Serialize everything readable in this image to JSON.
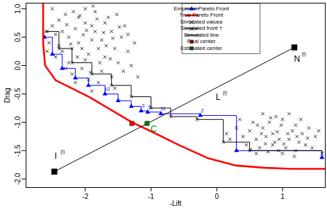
{
  "chart_data": {
    "type": "scatter",
    "xlabel": "-Lift",
    "ylabel": "Drag",
    "xlim": [
      -2.9,
      1.65
    ],
    "ylim": [
      -2.15,
      1.1
    ],
    "xticks": [
      -2,
      -1,
      0,
      1
    ],
    "yticks": [
      {
        "value": -2,
        "label": "-2.0"
      },
      -1.5,
      {
        "value": -1,
        "label": "-1.0"
      },
      -0.5,
      {
        "value": 0,
        "label": "0.0"
      },
      0.5,
      {
        "value": 1,
        "label": "1.0"
      }
    ],
    "grid": false,
    "legend": "top-right",
    "series": [
      {
        "name": "Empirical Pareto Front",
        "type": "line",
        "color": "#0000ff",
        "marker": "triangle",
        "line_style": "step",
        "x": [
          -2.62,
          -2.5,
          -2.35,
          -2.15,
          -1.95,
          -1.7,
          -1.5,
          -1.3,
          -1.15,
          -1.05,
          -0.85,
          -0.25,
          0.3,
          1.6
        ],
        "values": [
          0.5,
          0.2,
          -0.05,
          -0.22,
          -0.35,
          -0.5,
          -0.62,
          -0.72,
          -0.8,
          -0.82,
          -0.85,
          -0.88,
          -1.5,
          -1.62
        ],
        "labels": [
          null,
          null,
          null,
          null,
          null,
          "10",
          null,
          null,
          "3",
          "5",
          "11",
          "2",
          null,
          null
        ]
      },
      {
        "name": "True Pareto Front",
        "type": "line",
        "color": "#ff0000",
        "line_style": "thick",
        "x": [
          -2.64,
          -2.64,
          -2.61,
          -2.45,
          -2.24,
          -1.93,
          -1.61,
          -1.29,
          -0.98,
          -0.56,
          -0.14,
          0.28,
          0.71,
          1.13,
          1.65
        ],
        "values": [
          1.1,
          0.4,
          0.0,
          -0.26,
          -0.38,
          -0.56,
          -0.78,
          -1.0,
          -1.17,
          -1.41,
          -1.63,
          -1.76,
          -1.8,
          -1.82,
          -1.82
        ]
      },
      {
        "name": "Simulated values",
        "type": "scatter",
        "color": "#000000",
        "marker": "x",
        "x": [
          -2.03,
          -1.9,
          -2.2,
          -1.75,
          -2.1,
          -1.95,
          -2.35,
          -1.6,
          -1.85,
          -2.25,
          -2.4,
          -1.7,
          -2.0,
          -1.55,
          -2.15,
          -1.8,
          -2.3,
          -1.65,
          -2.45,
          -1.5,
          -2.05,
          -1.9,
          -2.2,
          -1.45,
          -2.5,
          -1.75,
          -2.1,
          -1.35,
          -2.55,
          -1.95,
          -1.6,
          -2.3,
          -1.4,
          -2.0,
          -1.85,
          -2.25,
          -1.7,
          -2.12,
          -1.52,
          -2.4,
          -1.88,
          -1.3,
          -2.58,
          -1.8,
          -2.05,
          -1.68,
          -2.18,
          -1.42,
          -2.35,
          -1.98,
          -1.58,
          -2.28,
          -1.25,
          -1.92,
          -2.08,
          -1.72,
          -2.45,
          -1.62,
          -1.82,
          -2.22,
          -1.48,
          -2.0,
          -1.78,
          -2.5,
          -1.35,
          -2.15,
          -1.55,
          -2.6,
          -1.2,
          -1.9,
          0.92,
          0.7,
          1.1,
          0.85,
          1.2,
          0.6,
          1.0,
          0.75,
          1.3,
          0.5,
          1.05,
          0.9,
          0.65,
          1.25,
          0.8,
          1.4,
          0.55,
          0.95,
          1.15,
          0.4,
          1.35,
          0.7,
          1.0,
          0.85,
          1.2,
          0.3,
          1.5,
          0.6,
          1.1,
          0.45,
          0.98,
          1.28,
          0.78,
          1.45,
          0.2,
          1.08,
          0.68,
          0.88,
          1.55,
          0.35,
          1.18,
          0.52,
          0.82,
          1.38,
          0.62,
          1.02,
          0.15,
          1.22,
          0.74,
          0.94
        ],
        "values": [
          0.54,
          0.7,
          0.3,
          0.45,
          0.85,
          0.2,
          0.6,
          0.6,
          0.95,
          0.05,
          0.35,
          0.15,
          1.0,
          0.3,
          0.65,
          0.3,
          0.9,
          0.85,
          0.15,
          0.05,
          -0.05,
          0.45,
          -0.15,
          0.5,
          0.7,
          -0.1,
          0.4,
          0.25,
          0.4,
          -0.25,
          -0.2,
          -0.05,
          0.7,
          0.75,
          0.6,
          0.5,
          0.75,
          0.15,
          0.9,
          0.8,
          1.05,
          0.0,
          0.25,
          -0.3,
          0.3,
          0.35,
          0.95,
          -0.1,
          0.25,
          0.62,
          0.48,
          0.72,
          0.4,
          -0.12,
          0.88,
          0.58,
          0.55,
          0.12,
          0.82,
          0.38,
          0.68,
          0.1,
          0.05,
          1.0,
          0.55,
          -0.3,
          -0.4,
          0.6,
          -0.2,
          -0.45,
          -1.17,
          -1.1,
          -1.3,
          -1.4,
          -1.05,
          -1.3,
          -0.95,
          -1.25,
          -1.2,
          -1.15,
          -1.45,
          -0.9,
          -1.45,
          -1.35,
          -1.0,
          -1.1,
          -1.0,
          -1.3,
          -1.15,
          -1.25,
          -1.4,
          -0.85,
          -1.55,
          -1.2,
          -1.5,
          -1.1,
          -1.25,
          -1.55,
          -0.85,
          -1.4,
          -1.05,
          -0.95,
          -1.52,
          -1.45,
          -1.3,
          -1.2,
          -1.2,
          -1.35,
          -1.15,
          -0.95,
          -1.6,
          -1.48,
          -0.92,
          -1.28,
          -1.05,
          -1.38,
          -1.2,
          -1.25,
          -1.38,
          -1.5
        ]
      },
      {
        "name": "Simulated front †",
        "type": "line",
        "color": "#000000",
        "marker": "x",
        "line_style": "step",
        "x": [
          -2.58,
          -2.4,
          -2.2,
          -1.9,
          -1.6,
          -1.3,
          -1.0,
          -0.7,
          -0.3,
          0.1,
          0.5,
          1.6
        ],
        "values": [
          0.6,
          0.3,
          0.05,
          -0.15,
          -0.35,
          -0.55,
          -0.75,
          -0.9,
          -0.95,
          -1.35,
          -1.5,
          -1.55
        ]
      },
      {
        "name": "Simulated line",
        "type": "line",
        "color": "#000000",
        "line_style": "solid",
        "x": [
          -2.47,
          1.18
        ],
        "values": [
          -1.87,
          0.32
        ]
      },
      {
        "name": "Real center",
        "type": "scatter",
        "color": "#ff0000",
        "marker": "square",
        "x": [
          -1.29
        ],
        "values": [
          -1.02
        ]
      },
      {
        "name": "Estimated center",
        "type": "scatter",
        "color": "#008000",
        "marker": "square",
        "x": [
          -1.06
        ],
        "values": [
          -1.02
        ]
      }
    ],
    "points": [
      {
        "x": -2.47,
        "y": -1.87,
        "marker": "square",
        "color": "#000000"
      },
      {
        "x": 1.18,
        "y": 0.32,
        "marker": "square",
        "color": "#000000"
      }
    ],
    "annotations": [
      {
        "text": "I",
        "superscript": "(i)",
        "x": -2.45,
        "y": -1.6,
        "color": "#000000"
      },
      {
        "text": "N",
        "superscript": "(i)",
        "x": 1.22,
        "y": 0.12,
        "color": "#000000"
      },
      {
        "text": "L",
        "superscript": "(i)",
        "x": 0.02,
        "y": -0.56,
        "color": "#000000"
      },
      {
        "text": "C",
        "x": -0.96,
        "y": -1.12,
        "color": "#008000"
      }
    ]
  }
}
